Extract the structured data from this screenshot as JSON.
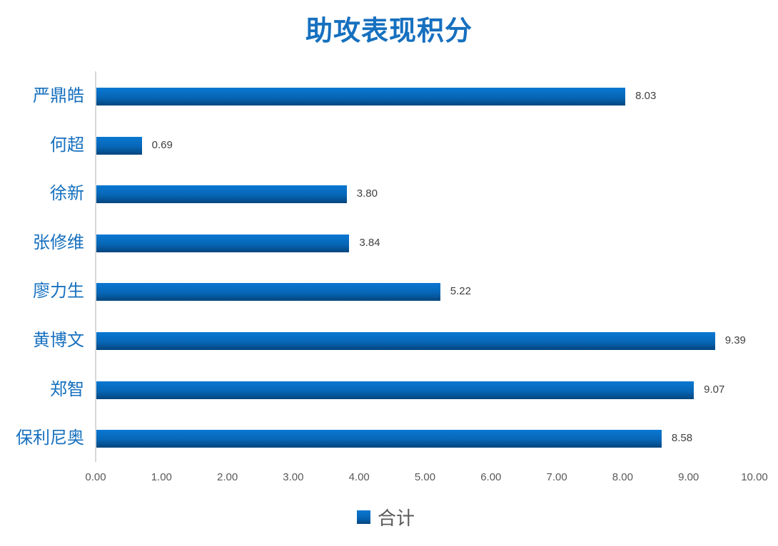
{
  "chart_data": {
    "type": "bar",
    "orientation": "horizontal",
    "title": "助攻表现积分",
    "xlabel": "",
    "ylabel": "",
    "xlim": [
      0,
      10
    ],
    "categories": [
      "严鼎皓",
      "何超",
      "徐新",
      "张修维",
      "廖力生",
      "黄博文",
      "郑智",
      "保利尼奥"
    ],
    "series": [
      {
        "name": "合计",
        "values": [
          8.03,
          0.69,
          3.8,
          3.84,
          5.22,
          9.39,
          9.07,
          8.58
        ],
        "value_labels": [
          "8.03",
          "0.69",
          "3.80",
          "3.84",
          "5.22",
          "9.39",
          "9.07",
          "8.58"
        ],
        "color": "#0766b6"
      }
    ],
    "x_ticks": [
      "0.00",
      "1.00",
      "2.00",
      "3.00",
      "4.00",
      "5.00",
      "6.00",
      "7.00",
      "8.00",
      "9.00",
      "10.00"
    ],
    "grid": false,
    "legend_position": "bottom",
    "data_labels": true
  },
  "colors": {
    "title": "#1670bf",
    "category_label": "#1670bf",
    "bar_top": "#0a78d2",
    "bar_bottom": "#04457e",
    "value_label": "#404040",
    "tick_label": "#595959"
  }
}
